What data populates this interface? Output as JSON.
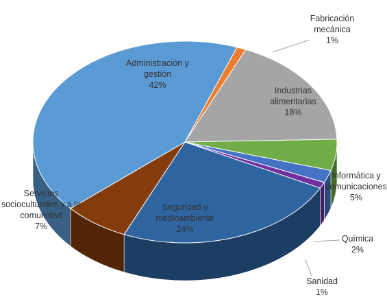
{
  "chart_data": {
    "type": "pie3d",
    "categories": [
      "Fabricación mecánica",
      "Industrias alimentarias",
      "Informática y comunicaciones",
      "Química",
      "Sanidad",
      "Seguridad y medioambiente",
      "Servicios socioculturales y a la comunidad",
      "Administración y gestión"
    ],
    "values": [
      1,
      18,
      5,
      2,
      1,
      24,
      7,
      42
    ],
    "value_labels": [
      "1%",
      "18%",
      "5%",
      "2%",
      "1%",
      "24%",
      "7%",
      "42%"
    ],
    "colors": [
      "#ed7d31",
      "#a5a5a5",
      "#70ad47",
      "#4472c4",
      "#7030a0",
      "#2e64a0",
      "#843c0c",
      "#5b9bd5"
    ]
  }
}
